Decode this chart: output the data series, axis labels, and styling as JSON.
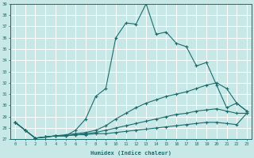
{
  "xlabel": "Humidex (Indice chaleur)",
  "bg_color": "#c8e8e8",
  "grid_color": "#b0d0d0",
  "line_color": "#1a6b6b",
  "x": [
    0,
    1,
    2,
    3,
    4,
    5,
    6,
    7,
    8,
    9,
    10,
    11,
    12,
    13,
    14,
    15,
    16,
    17,
    18,
    19,
    20,
    21,
    22,
    23
  ],
  "line1": [
    28.5,
    27.8,
    27.1,
    27.2,
    27.3,
    27.3,
    27.8,
    28.8,
    30.8,
    31.5,
    36.0,
    37.3,
    37.2,
    39.0,
    36.3,
    36.5,
    35.5,
    35.2,
    33.5,
    33.8,
    31.8,
    29.8,
    30.2,
    29.5
  ],
  "line2": [
    28.5,
    27.8,
    27.1,
    27.2,
    27.3,
    27.4,
    27.5,
    27.6,
    27.8,
    28.2,
    28.8,
    29.3,
    29.8,
    30.2,
    30.5,
    30.8,
    31.0,
    31.2,
    31.5,
    31.8,
    32.0,
    31.5,
    30.2,
    29.5
  ],
  "line3": [
    28.5,
    27.8,
    27.1,
    27.2,
    27.3,
    27.3,
    27.4,
    27.5,
    27.6,
    27.8,
    28.0,
    28.2,
    28.4,
    28.6,
    28.8,
    29.0,
    29.2,
    29.3,
    29.5,
    29.6,
    29.7,
    29.5,
    29.3,
    29.3
  ],
  "line4": [
    28.5,
    27.8,
    27.1,
    27.2,
    27.3,
    27.3,
    27.4,
    27.4,
    27.5,
    27.5,
    27.6,
    27.7,
    27.8,
    27.9,
    28.0,
    28.1,
    28.2,
    28.3,
    28.4,
    28.5,
    28.5,
    28.4,
    28.3,
    29.3
  ],
  "ylim": [
    27,
    39
  ],
  "xlim": [
    -0.5,
    23.5
  ],
  "yticks": [
    27,
    28,
    29,
    30,
    31,
    32,
    33,
    34,
    35,
    36,
    37,
    38,
    39
  ],
  "xticks": [
    0,
    1,
    2,
    3,
    4,
    5,
    6,
    7,
    8,
    9,
    10,
    11,
    12,
    13,
    14,
    15,
    16,
    17,
    18,
    19,
    20,
    21,
    22,
    23
  ]
}
